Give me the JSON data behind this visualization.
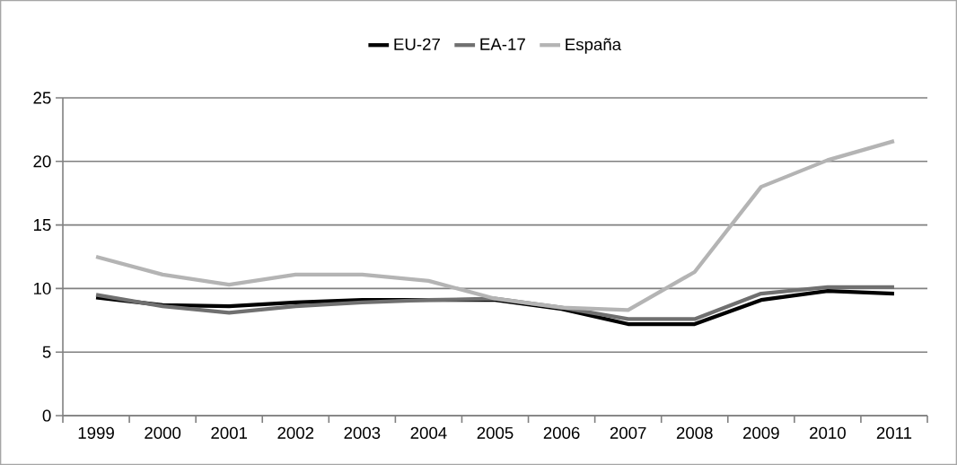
{
  "chart_data": {
    "type": "line",
    "categories": [
      "1999",
      "2000",
      "2001",
      "2002",
      "2003",
      "2004",
      "2005",
      "2006",
      "2007",
      "2008",
      "2009",
      "2010",
      "2011"
    ],
    "series": [
      {
        "name": "EU-27",
        "color": "#000000",
        "values": [
          9.3,
          8.7,
          8.6,
          8.9,
          9.1,
          9.1,
          9.1,
          8.4,
          7.2,
          7.2,
          9.1,
          9.8,
          9.6
        ]
      },
      {
        "name": "EA-17",
        "color": "#707070",
        "values": [
          9.5,
          8.6,
          8.1,
          8.6,
          8.9,
          9.1,
          9.2,
          8.5,
          7.6,
          7.6,
          9.6,
          10.1,
          10.1
        ]
      },
      {
        "name": "España",
        "color": "#b4b4b4",
        "values": [
          12.5,
          11.1,
          10.3,
          11.1,
          11.1,
          10.6,
          9.2,
          8.5,
          8.3,
          11.3,
          18.0,
          20.1,
          21.6
        ]
      }
    ],
    "ylim": [
      0,
      25
    ],
    "yticks": [
      0,
      5,
      10,
      15,
      20,
      25
    ],
    "grid": "y",
    "legend": "top",
    "line_style": "solid",
    "marker": "none"
  }
}
